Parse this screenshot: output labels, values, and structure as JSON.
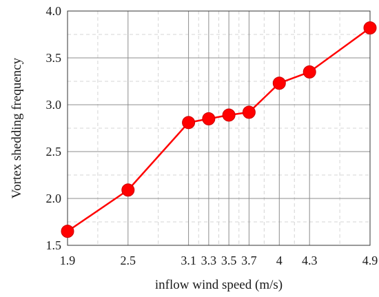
{
  "chart_data": {
    "type": "line",
    "title": "",
    "xlabel": "inflow wind speed (m/s)",
    "ylabel": "Vortex shedding frequency",
    "xlim": [
      1.9,
      4.9
    ],
    "ylim": [
      1.5,
      4.0
    ],
    "x_ticks": [
      1.9,
      2.5,
      3.1,
      3.3,
      3.5,
      3.7,
      4.0,
      4.3,
      4.9
    ],
    "x_tick_labels": [
      "1.9",
      "2.5",
      "3.1",
      "3.3",
      "3.5",
      "3.7",
      "4",
      "4.3",
      "4.9"
    ],
    "y_ticks": [
      1.5,
      2.0,
      2.5,
      3.0,
      3.5,
      4.0
    ],
    "y_tick_labels": [
      "1.5",
      "2.0",
      "2.5",
      "3.0",
      "3.5",
      "4.0"
    ],
    "grid": true,
    "series": [
      {
        "color": "#ff0000",
        "x": [
          1.9,
          2.5,
          3.1,
          3.3,
          3.5,
          3.7,
          4.0,
          4.3,
          4.9
        ],
        "y": [
          1.65,
          2.09,
          2.81,
          2.85,
          2.89,
          2.92,
          3.23,
          3.35,
          3.82
        ]
      }
    ]
  }
}
